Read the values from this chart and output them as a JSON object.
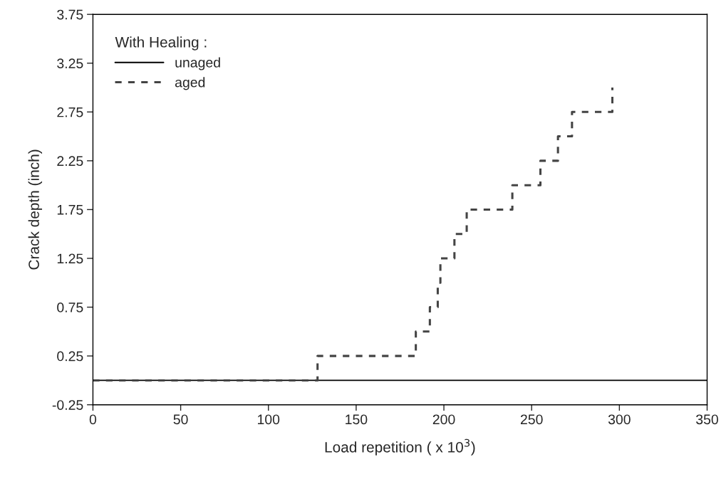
{
  "chart_data": {
    "type": "line",
    "xlabel": "Load repetition ( x 10$^{3}$)",
    "ylabel": "Crack depth (inch)",
    "legend_title": "With Healing :",
    "series": [
      {
        "name": "unaged",
        "color": "#000000",
        "line_style": "solid",
        "x": [
          0,
          350
        ],
        "values": [
          0,
          0
        ]
      },
      {
        "name": "aged",
        "type": "step",
        "color": "#444444",
        "line_style": "dashed",
        "x": [
          0,
          128,
          184,
          192,
          196.5,
          198,
          206,
          213,
          239,
          255,
          265,
          273,
          296
        ],
        "values": [
          0,
          0.25,
          0.5,
          0.75,
          1.0,
          1.25,
          1.5,
          1.75,
          2.0,
          2.25,
          2.5,
          2.75,
          3.0
        ]
      }
    ],
    "xlim": [
      0,
      350
    ],
    "xticks": [
      0,
      50,
      100,
      150,
      200,
      250,
      300,
      350
    ],
    "ylim": [
      -0.25,
      3.75
    ],
    "yticks": [
      -0.25,
      0.25,
      0.75,
      1.25,
      1.75,
      2.25,
      2.75,
      3.25,
      3.75
    ],
    "grid": false,
    "legend": "top left",
    "marker": "none"
  }
}
